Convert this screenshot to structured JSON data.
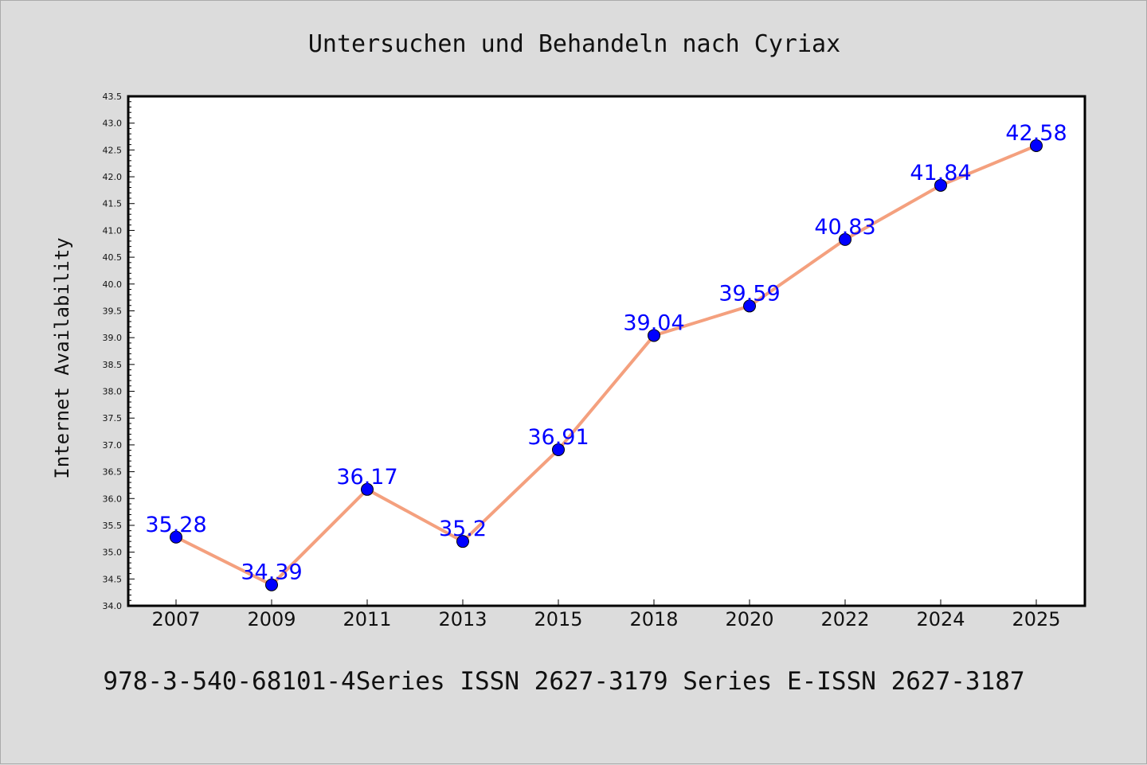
{
  "chart_data": {
    "type": "line",
    "title": "Untersuchen und Behandeln nach Cyriax",
    "ylabel": "Internet Availability",
    "xlabel": "",
    "categories": [
      "2007",
      "2009",
      "2011",
      "2013",
      "2015",
      "2018",
      "2020",
      "2022",
      "2024",
      "2025"
    ],
    "values": [
      35.28,
      34.39,
      36.17,
      35.2,
      36.91,
      39.04,
      39.59,
      40.83,
      41.84,
      42.58
    ],
    "data_labels": [
      "35.28",
      "34.39",
      "36.17",
      "35.2",
      "36.91",
      "39.04",
      "39.59",
      "40.83",
      "41.84",
      "42.58"
    ],
    "ylim": [
      34.0,
      43.5
    ],
    "yticks": [
      "34.0",
      "34.5",
      "35.0",
      "35.5",
      "36.0",
      "36.5",
      "37.0",
      "37.5",
      "38.0",
      "38.5",
      "39.0",
      "39.5",
      "40.0",
      "40.5",
      "41.0",
      "41.5",
      "42.0",
      "42.5",
      "43.0",
      "43.5"
    ],
    "grid": false,
    "colors": {
      "line": "#f4a07e",
      "marker": "#0000ff",
      "label": "#0000ff",
      "background": "#dcdcdc",
      "plot_background": "#ffffff"
    }
  },
  "footer": "978-3-540-68101-4Series ISSN 2627-3179 Series E-ISSN 2627-3187"
}
